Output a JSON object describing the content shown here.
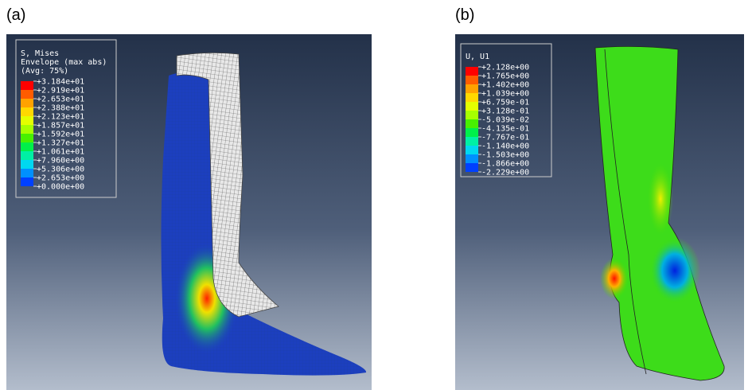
{
  "panels": [
    {
      "label": "(a)",
      "legend": {
        "title": [
          "S, Mises",
          "Envelope (max abs)",
          "(Avg: 75%)"
        ],
        "values": [
          "+3.184e+01",
          "+2.919e+01",
          "+2.653e+01",
          "+2.388e+01",
          "+2.123e+01",
          "+1.857e+01",
          "+1.592e+01",
          "+1.327e+01",
          "+1.061e+01",
          "+7.960e+00",
          "+5.306e+00",
          "+2.653e+00",
          "+0.000e+00"
        ]
      }
    },
    {
      "label": "(b)",
      "legend": {
        "title": [
          "U, U1"
        ],
        "values": [
          "+2.128e+00",
          "+1.765e+00",
          "+1.402e+00",
          "+1.039e+00",
          "+6.759e-01",
          "+3.128e-01",
          "-5.039e-02",
          "-4.135e-01",
          "-7.767e-01",
          "-1.140e+00",
          "-1.503e+00",
          "-1.866e+00",
          "-2.229e+00"
        ]
      }
    }
  ]
}
